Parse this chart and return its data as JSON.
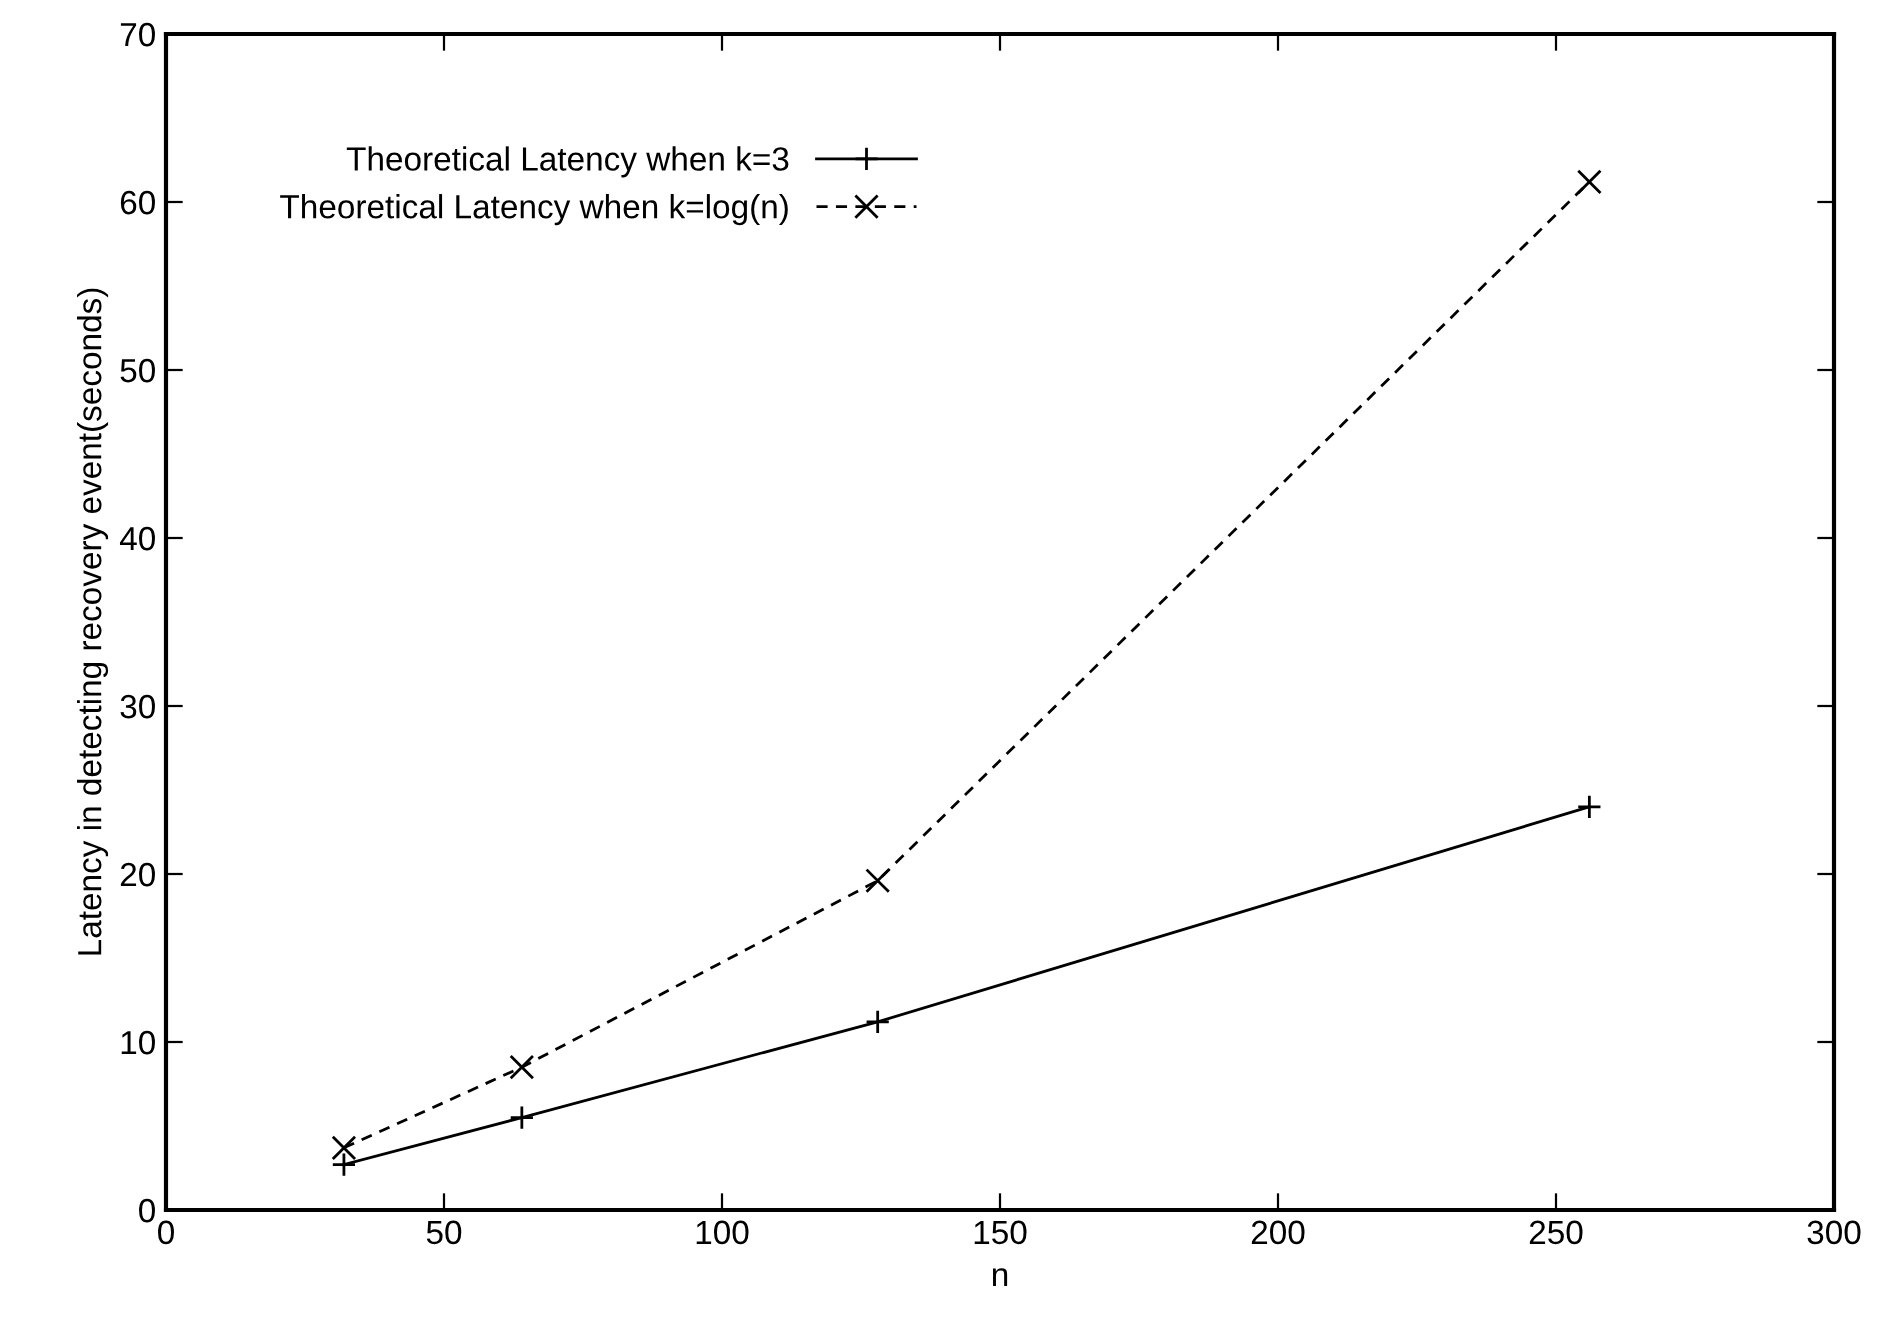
{
  "chart_data": {
    "type": "line",
    "xlabel": "n",
    "ylabel": "Latency in detecting recovery event(seconds)",
    "x": [
      32,
      64,
      128,
      256
    ],
    "series": [
      {
        "name": "Theoretical Latency when k=3",
        "color": "#000000",
        "values": [
          2.7,
          5.5,
          11.2,
          24.0
        ],
        "marker": "plus",
        "line_style": "solid"
      },
      {
        "name": "Theoretical Latency when k=log(n)",
        "color": "#000000",
        "values": [
          3.7,
          8.5,
          19.6,
          61.2
        ],
        "marker": "cross",
        "line_style": "dashed"
      }
    ],
    "xlim": [
      0,
      300
    ],
    "xticks": [
      0,
      50,
      100,
      150,
      200,
      250,
      300
    ],
    "ylim": [
      0,
      70
    ],
    "yticks": [
      0,
      10,
      20,
      30,
      40,
      50,
      60,
      70
    ],
    "grid": false,
    "legend": "top left"
  }
}
